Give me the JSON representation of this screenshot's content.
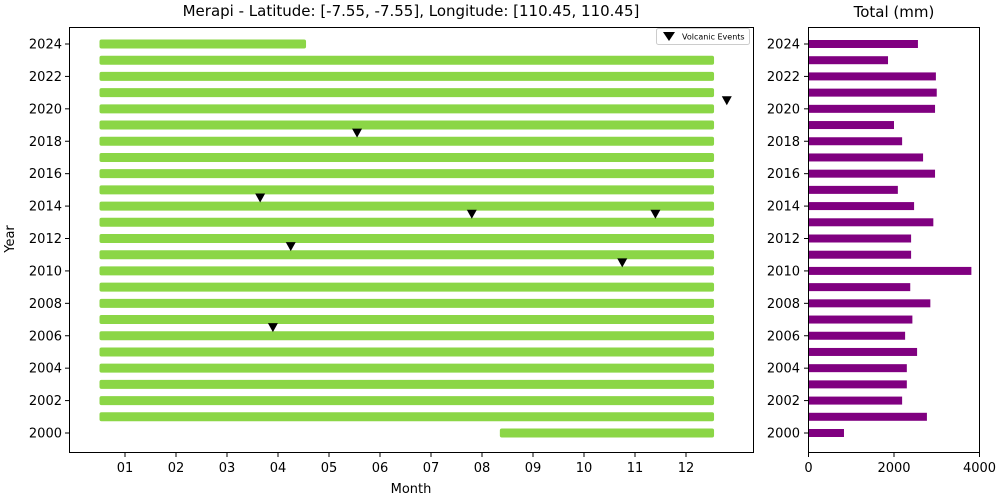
{
  "chart_data": [
    {
      "type": "timeline",
      "title": "Merapi - Latitude: [-7.55, -7.55], Longitude: [110.45, 110.45]",
      "xlabel": "Month",
      "ylabel": "Year",
      "x_ticks": [
        "01",
        "02",
        "03",
        "04",
        "05",
        "06",
        "07",
        "08",
        "09",
        "10",
        "11",
        "12"
      ],
      "y_ticks": [
        2000,
        2002,
        2004,
        2006,
        2008,
        2010,
        2012,
        2014,
        2016,
        2018,
        2020,
        2022,
        2024
      ],
      "xlim": [
        -0.1,
        13.3
      ],
      "ylim": [
        1998.8,
        2025.0
      ],
      "bar_color": "#8bd646",
      "coverage": [
        {
          "year": 2024,
          "start_month": 0.5,
          "end_month": 4.55
        },
        {
          "year": 2023,
          "start_month": 0.5,
          "end_month": 12.55
        },
        {
          "year": 2022,
          "start_month": 0.5,
          "end_month": 12.55
        },
        {
          "year": 2021,
          "start_month": 0.5,
          "end_month": 12.55
        },
        {
          "year": 2020,
          "start_month": 0.5,
          "end_month": 12.55
        },
        {
          "year": 2019,
          "start_month": 0.5,
          "end_month": 12.55
        },
        {
          "year": 2018,
          "start_month": 0.5,
          "end_month": 12.55
        },
        {
          "year": 2017,
          "start_month": 0.5,
          "end_month": 12.55
        },
        {
          "year": 2016,
          "start_month": 0.5,
          "end_month": 12.55
        },
        {
          "year": 2015,
          "start_month": 0.5,
          "end_month": 12.55
        },
        {
          "year": 2014,
          "start_month": 0.5,
          "end_month": 12.55
        },
        {
          "year": 2013,
          "start_month": 0.5,
          "end_month": 12.55
        },
        {
          "year": 2012,
          "start_month": 0.5,
          "end_month": 12.55
        },
        {
          "year": 2011,
          "start_month": 0.5,
          "end_month": 12.55
        },
        {
          "year": 2010,
          "start_month": 0.5,
          "end_month": 12.55
        },
        {
          "year": 2009,
          "start_month": 0.5,
          "end_month": 12.55
        },
        {
          "year": 2008,
          "start_month": 0.5,
          "end_month": 12.55
        },
        {
          "year": 2007,
          "start_month": 0.5,
          "end_month": 12.55
        },
        {
          "year": 2006,
          "start_month": 0.5,
          "end_month": 12.55
        },
        {
          "year": 2005,
          "start_month": 0.5,
          "end_month": 12.55
        },
        {
          "year": 2004,
          "start_month": 0.5,
          "end_month": 12.55
        },
        {
          "year": 2003,
          "start_month": 0.5,
          "end_month": 12.55
        },
        {
          "year": 2002,
          "start_month": 0.5,
          "end_month": 12.55
        },
        {
          "year": 2001,
          "start_month": 0.5,
          "end_month": 12.55
        },
        {
          "year": 2000,
          "start_month": 8.35,
          "end_month": 12.55
        }
      ],
      "events": {
        "label": "Volcanic Events",
        "marker": "triangle-down",
        "color": "#000000",
        "points": [
          {
            "month": 12.8,
            "year": 2020.5
          },
          {
            "month": 5.55,
            "year": 2018.5
          },
          {
            "month": 3.65,
            "year": 2014.5
          },
          {
            "month": 7.8,
            "year": 2013.5
          },
          {
            "month": 11.4,
            "year": 2013.5
          },
          {
            "month": 4.25,
            "year": 2011.5
          },
          {
            "month": 10.75,
            "year": 2010.5
          },
          {
            "month": 3.9,
            "year": 2006.5
          }
        ]
      },
      "legend": {
        "position": "upper right",
        "entries": [
          "Volcanic Events"
        ]
      }
    },
    {
      "type": "bar",
      "orientation": "horizontal",
      "title": "Total (mm)",
      "xlabel": "",
      "ylabel": "",
      "x_ticks": [
        0,
        2000,
        4000
      ],
      "y_ticks": [
        2000,
        2002,
        2004,
        2006,
        2008,
        2010,
        2012,
        2014,
        2016,
        2018,
        2020,
        2022,
        2024
      ],
      "xlim": [
        0,
        4000
      ],
      "bar_color": "#800080",
      "categories": [
        2000,
        2001,
        2002,
        2003,
        2004,
        2005,
        2006,
        2007,
        2008,
        2009,
        2010,
        2011,
        2012,
        2013,
        2014,
        2015,
        2016,
        2017,
        2018,
        2019,
        2020,
        2021,
        2022,
        2023,
        2024
      ],
      "values": [
        830,
        2770,
        2190,
        2300,
        2300,
        2540,
        2260,
        2430,
        2850,
        2380,
        3810,
        2400,
        2400,
        2920,
        2470,
        2090,
        2960,
        2680,
        2190,
        2000,
        2960,
        3000,
        2980,
        1860,
        2560
      ]
    }
  ]
}
